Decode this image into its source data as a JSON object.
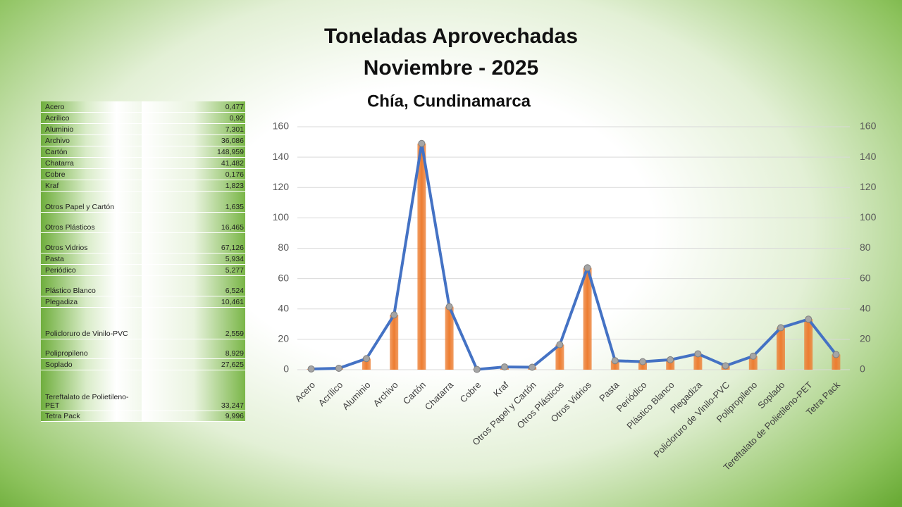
{
  "chart_data": {
    "type": "bar-line",
    "title": [
      "Toneladas Aprovechadas",
      "Noviembre - 2025"
    ],
    "subtitle": "Chía, Cundinamarca",
    "categories": [
      "Acero",
      "Acrílico",
      "Aluminio",
      "Archivo",
      "Cartón",
      "Chatarra",
      "Cobre",
      "Kraf",
      "Otros Papel y Cartón",
      "Otros Plásticos",
      "Otros Vidrios",
      "Pasta",
      "Periódico",
      "Plástico Blanco",
      "Plegadiza",
      "Policloruro de Vinilo-PVC",
      "Polipropileno",
      "Soplado",
      "Tereftalato de Polietileno-PET",
      "Tetra Pack"
    ],
    "values": [
      0.477,
      0.92,
      7.301,
      36.086,
      148.959,
      41.482,
      0.176,
      1.823,
      1.635,
      16.465,
      67.126,
      5.934,
      5.277,
      6.524,
      10.461,
      2.559,
      8.929,
      27.625,
      33.247,
      9.996
    ],
    "bar_color": "#ed7d31",
    "line_color": "#4472c4",
    "marker_color": "#a5a5a5",
    "ylim": [
      0,
      160
    ],
    "yticks": [
      0,
      20,
      40,
      60,
      80,
      100,
      120,
      140,
      160
    ],
    "y2lim": [
      0,
      160
    ],
    "y2ticks": [
      0,
      20,
      40,
      60,
      80,
      100,
      120,
      140,
      160
    ],
    "grid": true
  },
  "table": {
    "rows": [
      [
        "Acero",
        "0,477"
      ],
      [
        "Acrílico",
        "0,92"
      ],
      [
        "Aluminio",
        "7,301"
      ],
      [
        "Archivo",
        "36,086"
      ],
      [
        "Cartón",
        "148,959"
      ],
      [
        "Chatarra",
        "41,482"
      ],
      [
        "Cobre",
        "0,176"
      ],
      [
        "Kraf",
        "1,823"
      ],
      [
        "Otros Papel y Cartón",
        "1,635"
      ],
      [
        "Otros Plásticos",
        "16,465"
      ],
      [
        "Otros Vidrios",
        "67,126"
      ],
      [
        "Pasta",
        "5,934"
      ],
      [
        "Periódico",
        "5,277"
      ],
      [
        "Plástico Blanco",
        "6,524"
      ],
      [
        "Plegadiza",
        "10,461"
      ],
      [
        "Policloruro de Vinilo-PVC",
        "2,559"
      ],
      [
        "Polipropileno",
        "8,929"
      ],
      [
        "Soplado",
        "27,625"
      ],
      [
        "Tereftalato de Polietileno-PET",
        "33,247"
      ],
      [
        "Tetra Pack",
        "9,996"
      ]
    ]
  }
}
